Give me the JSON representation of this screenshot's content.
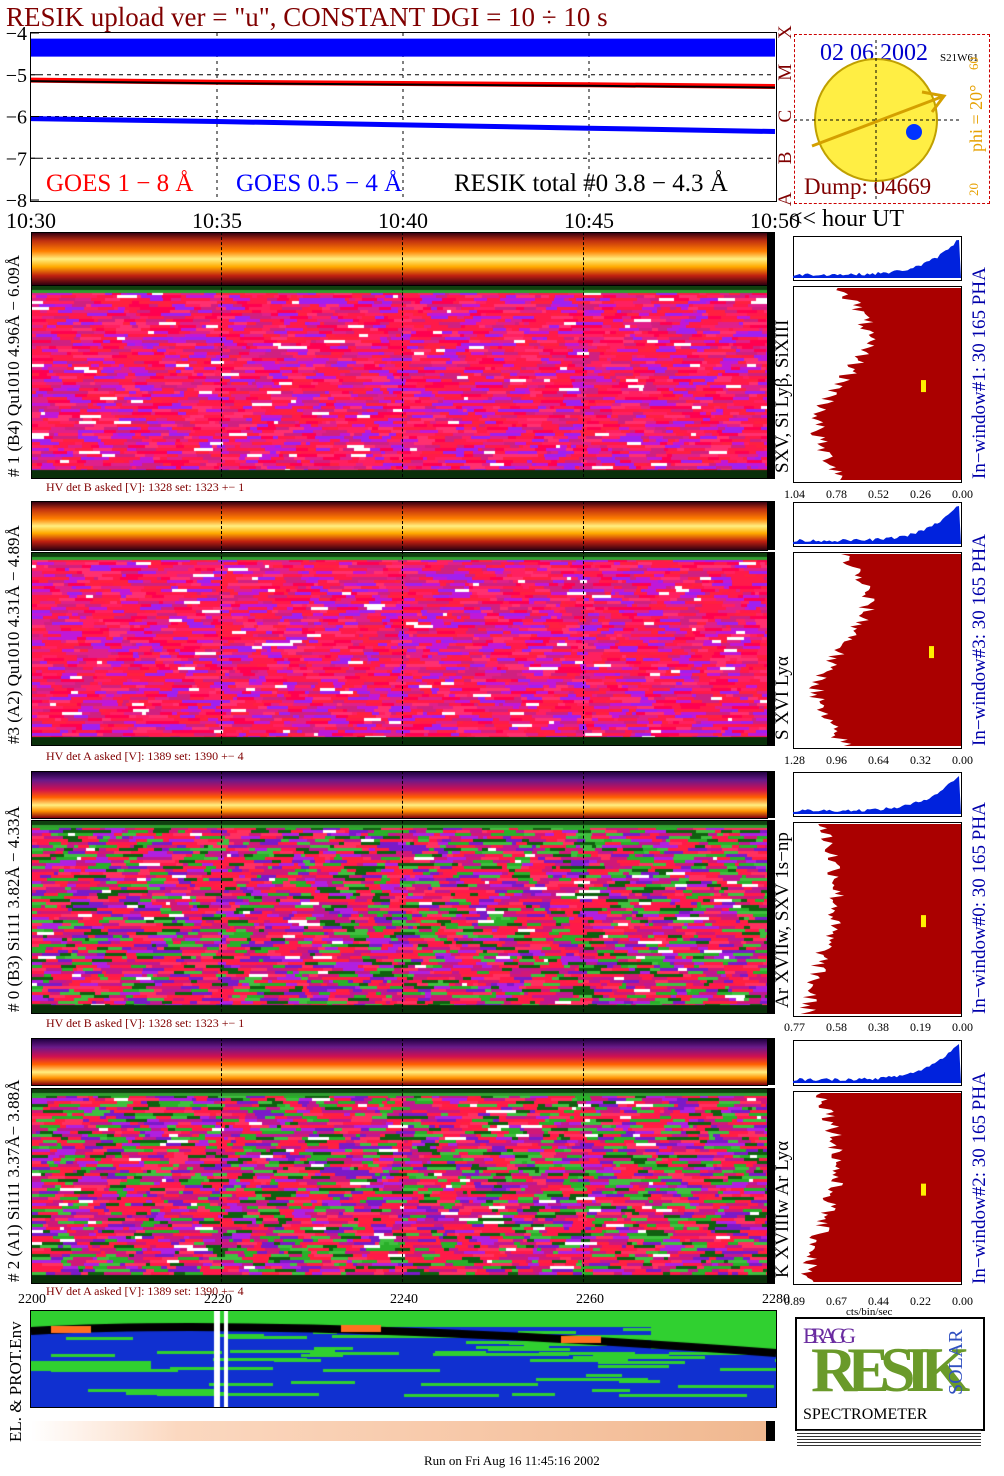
{
  "title": "RESIK upload ver = \"u\", CONSTANT  DGI =  10 ÷  10 s",
  "goes_panel": {
    "yticks": [
      "−4",
      "−5",
      "−6",
      "−7",
      "−8"
    ],
    "class_letters": [
      "X",
      "M",
      "C",
      "B",
      "A"
    ],
    "legend_goes18": "GOES 1 − 8 Å",
    "legend_goes054": "GOES 0.5 − 4 Å",
    "legend_resik": "RESIK total #0  3.8 − 4.3 Å",
    "time_ticks": [
      "10:30",
      "10:35",
      "10:40",
      "10:45",
      "10:50"
    ],
    "time_unit": "<< hour UT",
    "colors": {
      "goes18": "#ff0000",
      "goes054": "#0000ff",
      "resik": "#000000",
      "title": "#800000"
    }
  },
  "sun_panel": {
    "date": "02 06 2002",
    "position": "S21W61",
    "phi_label": "phi = 20°",
    "scale_top": "60",
    "scale_bottom": "20",
    "dump": "Dump: 04669"
  },
  "detectors": [
    {
      "left_label": "# 1 (B4) Qu1010 4.96Å − 6.09Å",
      "lines_label": "SXV, Si Lyβ, SiXIII",
      "hv_label": "HV det B asked [V]:  1328 set:  1323 +−    1",
      "window_label": "In−window#1:   30 165 PHA",
      "pha_ticks": [
        "1.04",
        "0.78",
        "0.52",
        "0.26",
        "0.00"
      ]
    },
    {
      "left_label": "#3 (A2) Qu1010  4.31Å − 4.89Å",
      "lines_label": "S XVI Lyα",
      "hv_label": "HV det A asked [V]:  1389 set:  1390 +−    4",
      "window_label": "In−window#3:   30 165 PHA",
      "pha_ticks": [
        "1.28",
        "0.96",
        "0.64",
        "0.32",
        "0.00"
      ]
    },
    {
      "left_label": "# 0 (B3) Si111  3.82Å − 4.33Å",
      "lines_label": "Ar XVIIw,  SXV 1s−np",
      "hv_label": "HV det B asked [V]:  1328 set:  1323 +−    1",
      "window_label": "In−window#0:   30 165 PHA",
      "pha_ticks": [
        "0.77",
        "0.58",
        "0.38",
        "0.19",
        "0.00"
      ]
    },
    {
      "left_label": "# 2 (A1) Si111  3.37Å−  3.88Å",
      "lines_label": "K XVIIIw   Ar Lyα",
      "hv_label": "HV det A asked [V]:  1389 set:  1390 +−    4",
      "window_label": "In−window#2:   30 165 PHA",
      "pha_ticks": [
        "0.89",
        "0.67",
        "0.44",
        "0.22",
        "0.00"
      ],
      "pha_unit": "cts/bin/sec"
    }
  ],
  "env_panel": {
    "label": "EL. & PROT.Env",
    "ticks": [
      "2200",
      "2220",
      "2240",
      "2260",
      "2280"
    ]
  },
  "logo": {
    "letters_top": "BRAGG",
    "letters_main": "RESIK",
    "letters_side": "SOLAR",
    "caption": "SPECTROMETER"
  },
  "footer": "Run on Fri Aug 16 11:45:16 2002",
  "chart_data": {
    "type": "line",
    "title": "RESIK upload ver = \"u\", CONSTANT  DGI =  10 ÷  10 s",
    "x": [
      "10:30",
      "10:35",
      "10:40",
      "10:45",
      "10:50"
    ],
    "xlabel": "hour UT",
    "ylim": [
      -8,
      -4
    ],
    "series": [
      {
        "name": "GOES 1 − 8 Å",
        "values": [
          -5.13,
          -5.18,
          -5.21,
          -5.24,
          -5.28
        ]
      },
      {
        "name": "GOES 0.5 − 4 Å",
        "values": [
          -6.05,
          -6.12,
          -6.2,
          -6.28,
          -6.36
        ]
      },
      {
        "name": "RESIK total #0  3.8 − 4.3 Å",
        "values": [
          -4.35,
          -4.35,
          -4.35,
          -4.35,
          -4.35
        ]
      }
    ]
  }
}
